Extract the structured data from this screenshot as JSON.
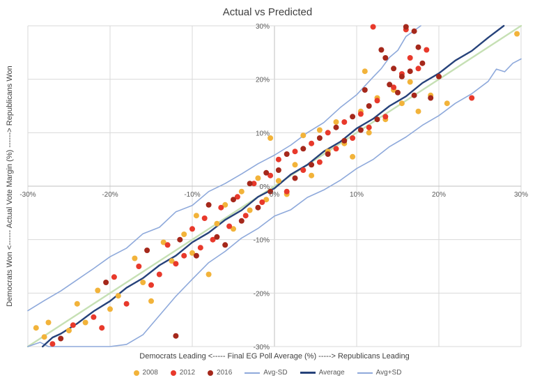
{
  "title": "Actual vs Predicted",
  "axes": {
    "x_label": "Democrats Leading <----- Final EG Poll Average (%) -----> Republicans Leading",
    "y_label": "Democrats Won <------ Actual Vote Margin (%) ------> Republicans Won"
  },
  "colors": {
    "grid": "#D9D9D9",
    "axis": "#BFBFBF",
    "tick_text": "#595959",
    "title_text": "#404040"
  },
  "chart_data": {
    "type": "scatter",
    "title": "Actual vs Predicted",
    "xlabel": "Democrats Leading <----- Final EG Poll Average (%) -----> Republicans Leading",
    "ylabel": "Democrats Won <------ Actual Vote Margin (%) ------> Republicans Won",
    "xlim": [
      -30,
      30
    ],
    "ylim": [
      -30,
      30
    ],
    "grid": true,
    "x_ticks": [
      "-30%",
      "-20%",
      "-10%",
      "0%",
      "10%",
      "20%",
      "30%"
    ],
    "x_tick_values": [
      -30,
      -20,
      -10,
      0,
      10,
      20,
      30
    ],
    "y_ticks": [
      "30%",
      "20%",
      "10%",
      "0%",
      "-10%",
      "-20%",
      "-30%"
    ],
    "y_tick_values": [
      30,
      20,
      10,
      0,
      -10,
      -20,
      -30
    ],
    "legend": {
      "position": "bottom",
      "items": [
        {
          "label": "2008",
          "type": "dot",
          "color": "#F2B33A"
        },
        {
          "label": "2012",
          "type": "dot",
          "color": "#E8392B"
        },
        {
          "label": "2016",
          "type": "dot",
          "color": "#A5281B"
        },
        {
          "label": "Avg-SD",
          "type": "line",
          "color": "#8EA9DB",
          "width": 2
        },
        {
          "label": "Average",
          "type": "line",
          "color": "#26427A",
          "width": 3
        },
        {
          "label": "Avg+SD",
          "type": "line",
          "color": "#8EA9DB",
          "width": 2
        }
      ]
    },
    "line_series": [
      {
        "name": "diagonal",
        "color": "#C6E0B4",
        "width": 2.4,
        "points": [
          [
            -30,
            -30
          ],
          [
            30,
            30
          ]
        ]
      },
      {
        "name": "Avg-SD",
        "color": "#8EA9DB",
        "width": 1.6,
        "points": [
          [
            -30,
            -30
          ],
          [
            -28.5,
            -29.2
          ],
          [
            -27.5,
            -30
          ],
          [
            -26,
            -30
          ],
          [
            -24,
            -30
          ],
          [
            -22,
            -30
          ],
          [
            -20,
            -30
          ],
          [
            -18,
            -29.6
          ],
          [
            -16,
            -27.8
          ],
          [
            -14,
            -24.2
          ],
          [
            -12,
            -20.6
          ],
          [
            -10,
            -17.4
          ],
          [
            -8,
            -14.3
          ],
          [
            -6,
            -12.2
          ],
          [
            -4,
            -9.7
          ],
          [
            -2,
            -7.9
          ],
          [
            0,
            -5.6
          ],
          [
            2,
            -4.4
          ],
          [
            4,
            -2.1
          ],
          [
            6,
            -0.7
          ],
          [
            8,
            1.1
          ],
          [
            10,
            3.3
          ],
          [
            12,
            5.0
          ],
          [
            14,
            7.4
          ],
          [
            16,
            9.2
          ],
          [
            18,
            11.4
          ],
          [
            20,
            13.2
          ],
          [
            22,
            15.5
          ],
          [
            24,
            17.3
          ],
          [
            26,
            19.6
          ],
          [
            27,
            21.9
          ],
          [
            28,
            21.4
          ],
          [
            29,
            23.0
          ],
          [
            30,
            23.8
          ]
        ]
      },
      {
        "name": "Avg+SD",
        "color": "#8EA9DB",
        "width": 1.6,
        "points": [
          [
            -30,
            -23.3
          ],
          [
            -28,
            -21.4
          ],
          [
            -26,
            -19.6
          ],
          [
            -24,
            -17.5
          ],
          [
            -22,
            -15.4
          ],
          [
            -20,
            -13.2
          ],
          [
            -18,
            -11.6
          ],
          [
            -16,
            -8.9
          ],
          [
            -14,
            -7.7
          ],
          [
            -12,
            -4.8
          ],
          [
            -10,
            -3.6
          ],
          [
            -8,
            -1.0
          ],
          [
            -6,
            0.5
          ],
          [
            -4,
            2.3
          ],
          [
            -2,
            4.2
          ],
          [
            0,
            5.8
          ],
          [
            2,
            7.7
          ],
          [
            4,
            10.0
          ],
          [
            6,
            11.9
          ],
          [
            8,
            14.7
          ],
          [
            10,
            17.1
          ],
          [
            12,
            20.4
          ],
          [
            13,
            22.0
          ],
          [
            14,
            24.1
          ],
          [
            15,
            25.4
          ],
          [
            16,
            28.0
          ],
          [
            17,
            29.1
          ],
          [
            17.8,
            30
          ]
        ]
      },
      {
        "name": "Average",
        "color": "#26427A",
        "width": 2.4,
        "points": [
          [
            -28.2,
            -30
          ],
          [
            -27,
            -28.3
          ],
          [
            -26,
            -27.6
          ],
          [
            -24,
            -25.7
          ],
          [
            -22,
            -23.4
          ],
          [
            -20,
            -21.5
          ],
          [
            -18,
            -19.0
          ],
          [
            -16,
            -17.2
          ],
          [
            -14,
            -14.8
          ],
          [
            -12,
            -13.0
          ],
          [
            -10,
            -10.5
          ],
          [
            -8,
            -8.7
          ],
          [
            -6,
            -6.3
          ],
          [
            -4,
            -4.5
          ],
          [
            -2,
            -2.0
          ],
          [
            0,
            -0.4
          ],
          [
            2,
            2.2
          ],
          [
            4,
            4.0
          ],
          [
            6,
            6.5
          ],
          [
            8,
            8.3
          ],
          [
            10,
            10.8
          ],
          [
            12,
            12.6
          ],
          [
            14,
            15.0
          ],
          [
            16,
            16.8
          ],
          [
            18,
            19.3
          ],
          [
            20,
            21.1
          ],
          [
            22,
            23.5
          ],
          [
            24,
            25.3
          ],
          [
            26,
            27.8
          ],
          [
            27.9,
            30
          ]
        ]
      }
    ],
    "scatter_series": [
      {
        "name": "2008",
        "color": "#F2B33A",
        "r": 4,
        "points": [
          [
            -29,
            -26.5
          ],
          [
            -28,
            -28.2
          ],
          [
            -27.5,
            -25.5
          ],
          [
            -25,
            -27
          ],
          [
            -24,
            -22
          ],
          [
            -23,
            -25.5
          ],
          [
            -21.5,
            -19.5
          ],
          [
            -20,
            -23
          ],
          [
            -19,
            -20.5
          ],
          [
            -17,
            -13.5
          ],
          [
            -16,
            -18
          ],
          [
            -15,
            -21.5
          ],
          [
            -13.5,
            -10.5
          ],
          [
            -12.5,
            -14
          ],
          [
            -11,
            -9
          ],
          [
            -10,
            -12.5
          ],
          [
            -9.5,
            -5.5
          ],
          [
            -8,
            -16.5
          ],
          [
            -7,
            -7
          ],
          [
            -6,
            -3.5
          ],
          [
            -5,
            -8
          ],
          [
            -4,
            -1
          ],
          [
            -3,
            -4.5
          ],
          [
            -2,
            1.5
          ],
          [
            -1,
            -2.5
          ],
          [
            -0.5,
            9
          ],
          [
            0.5,
            1
          ],
          [
            1.5,
            -1.5
          ],
          [
            2.5,
            4
          ],
          [
            3.5,
            9.5
          ],
          [
            4.5,
            2
          ],
          [
            5.5,
            10.5
          ],
          [
            6.5,
            6.5
          ],
          [
            7.5,
            12
          ],
          [
            8.5,
            8
          ],
          [
            9.5,
            5.5
          ],
          [
            10.5,
            14
          ],
          [
            11,
            21.5
          ],
          [
            11.5,
            10
          ],
          [
            12.5,
            16.5
          ],
          [
            13.5,
            12.5
          ],
          [
            14.5,
            18
          ],
          [
            15.5,
            15.5
          ],
          [
            16.5,
            19.5
          ],
          [
            17.5,
            14
          ],
          [
            19,
            17
          ],
          [
            21,
            15.5
          ],
          [
            29.5,
            28.5
          ]
        ]
      },
      {
        "name": "2012",
        "color": "#E8392B",
        "r": 4,
        "points": [
          [
            -27,
            -29.5
          ],
          [
            -24.5,
            -26
          ],
          [
            -22,
            -24.5
          ],
          [
            -21,
            -26.5
          ],
          [
            -19.5,
            -17
          ],
          [
            -18,
            -22
          ],
          [
            -16.5,
            -15
          ],
          [
            -15,
            -18.5
          ],
          [
            -14,
            -16.5
          ],
          [
            -13,
            -11
          ],
          [
            -12,
            -14.5
          ],
          [
            -11,
            -13
          ],
          [
            -10,
            -8
          ],
          [
            -9,
            -11.5
          ],
          [
            -8.5,
            -6
          ],
          [
            -7.5,
            -10
          ],
          [
            -6.5,
            -4
          ],
          [
            -5.5,
            -7.5
          ],
          [
            -4.5,
            -2
          ],
          [
            -3.5,
            -5.5
          ],
          [
            -2.5,
            0.5
          ],
          [
            -1.5,
            -3
          ],
          [
            -0.5,
            2
          ],
          [
            0.5,
            5
          ],
          [
            1.5,
            -1
          ],
          [
            2.5,
            6.5
          ],
          [
            3.5,
            3
          ],
          [
            4.5,
            8
          ],
          [
            5.5,
            4.5
          ],
          [
            6.5,
            10
          ],
          [
            7.5,
            7
          ],
          [
            8.5,
            12
          ],
          [
            9.5,
            9
          ],
          [
            10.5,
            13.5
          ],
          [
            11.5,
            11
          ],
          [
            12,
            29.8
          ],
          [
            12.5,
            16
          ],
          [
            13.5,
            13
          ],
          [
            14.5,
            18.5
          ],
          [
            15.5,
            21
          ],
          [
            16,
            29.3
          ],
          [
            16.5,
            24
          ],
          [
            17.5,
            22
          ],
          [
            18.5,
            25.5
          ],
          [
            24,
            16.5
          ]
        ]
      },
      {
        "name": "2016",
        "color": "#A5281B",
        "r": 4,
        "points": [
          [
            -26,
            -28.5
          ],
          [
            -20.5,
            -18
          ],
          [
            -15.5,
            -12
          ],
          [
            -12,
            -28
          ],
          [
            -11.5,
            -10
          ],
          [
            -9.5,
            -13
          ],
          [
            -8,
            -3.5
          ],
          [
            -7,
            -9.5
          ],
          [
            -6,
            -11
          ],
          [
            -5,
            -2.5
          ],
          [
            -4,
            -6.5
          ],
          [
            -3,
            0.5
          ],
          [
            -2,
            -4
          ],
          [
            -1,
            2.5
          ],
          [
            -0.5,
            -1
          ],
          [
            0.5,
            3
          ],
          [
            1.5,
            6
          ],
          [
            2.5,
            1.5
          ],
          [
            3.5,
            7
          ],
          [
            4.5,
            4
          ],
          [
            5.5,
            9
          ],
          [
            6.5,
            6
          ],
          [
            7.5,
            11
          ],
          [
            8.5,
            8.5
          ],
          [
            9.5,
            13
          ],
          [
            10.5,
            10.5
          ],
          [
            11,
            18
          ],
          [
            11.5,
            15
          ],
          [
            12.5,
            12.5
          ],
          [
            13,
            25.5
          ],
          [
            13.5,
            24
          ],
          [
            14,
            19
          ],
          [
            14.5,
            22
          ],
          [
            15,
            17.5
          ],
          [
            15.5,
            20.5
          ],
          [
            16,
            29.8
          ],
          [
            16.5,
            21.5
          ],
          [
            17,
            17
          ],
          [
            17.5,
            26
          ],
          [
            18,
            23
          ],
          [
            19,
            16.5
          ],
          [
            20,
            20.5
          ],
          [
            17,
            29
          ]
        ]
      }
    ]
  }
}
